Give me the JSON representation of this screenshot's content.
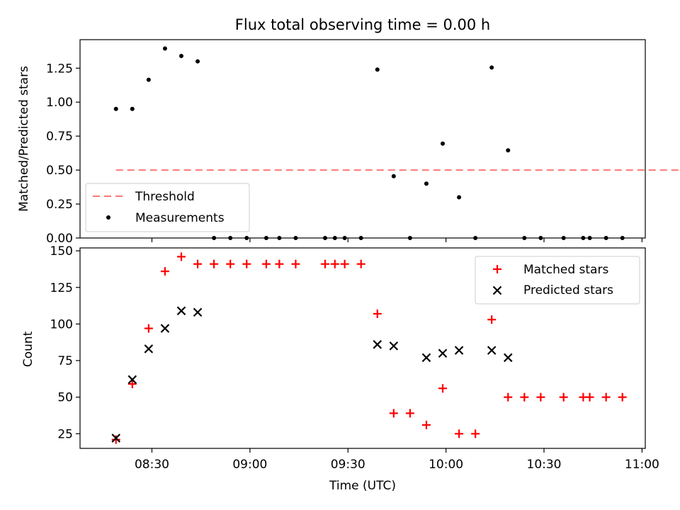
{
  "chart_data": [
    {
      "type": "scatter",
      "title": "Flux total observing time = 0.00 h",
      "xlabel": "",
      "ylabel": "Matched/Predicted stars",
      "ylim": [
        0,
        1.46
      ],
      "yticks": [
        "0.00",
        "0.25",
        "0.50",
        "0.75",
        "1.00",
        "1.25"
      ],
      "legend_position": "lower-left",
      "threshold": {
        "name": "Threshold",
        "value": 0.5,
        "x_range": [
          "08:19",
          "11:14"
        ],
        "color": "#ff7777"
      },
      "series": [
        {
          "name": "Measurements",
          "color": "#000000",
          "points": [
            {
              "x": "08:19",
              "y": 0.95
            },
            {
              "x": "08:24",
              "y": 0.95
            },
            {
              "x": "08:29",
              "y": 1.165
            },
            {
              "x": "08:34",
              "y": 1.395
            },
            {
              "x": "08:39",
              "y": 1.34
            },
            {
              "x": "08:44",
              "y": 1.3
            },
            {
              "x": "08:49",
              "y": 0.0
            },
            {
              "x": "08:54",
              "y": 0.0
            },
            {
              "x": "08:59",
              "y": 0.0
            },
            {
              "x": "09:05",
              "y": 0.0
            },
            {
              "x": "09:09",
              "y": 0.0
            },
            {
              "x": "09:14",
              "y": 0.0
            },
            {
              "x": "09:23",
              "y": 0.0
            },
            {
              "x": "09:26",
              "y": 0.0
            },
            {
              "x": "09:29",
              "y": 0.0
            },
            {
              "x": "09:34",
              "y": 0.0
            },
            {
              "x": "09:39",
              "y": 1.24
            },
            {
              "x": "09:44",
              "y": 0.455
            },
            {
              "x": "09:49",
              "y": 0.0
            },
            {
              "x": "09:54",
              "y": 0.4
            },
            {
              "x": "09:59",
              "y": 0.695
            },
            {
              "x": "10:04",
              "y": 0.3
            },
            {
              "x": "10:09",
              "y": 0.0
            },
            {
              "x": "10:14",
              "y": 1.255
            },
            {
              "x": "10:19",
              "y": 0.645
            },
            {
              "x": "10:24",
              "y": 0.0
            },
            {
              "x": "10:29",
              "y": 0.0
            },
            {
              "x": "10:36",
              "y": 0.0
            },
            {
              "x": "10:42",
              "y": 0.0
            },
            {
              "x": "10:44",
              "y": 0.0
            },
            {
              "x": "10:49",
              "y": 0.0
            },
            {
              "x": "10:54",
              "y": 0.0
            }
          ]
        }
      ]
    },
    {
      "type": "scatter",
      "title": "",
      "xlabel": "Time (UTC)",
      "ylabel": "Count",
      "ylim": [
        15,
        152
      ],
      "yticks": [
        "25",
        "50",
        "75",
        "100",
        "125",
        "150"
      ],
      "xlim": [
        "08:08",
        "11:01"
      ],
      "xticks": [
        "08:30",
        "09:00",
        "09:30",
        "10:00",
        "10:30",
        "11:00"
      ],
      "legend_position": "top-right",
      "series": [
        {
          "name": "Matched stars",
          "color": "#ff0000",
          "marker": "plus",
          "points": [
            {
              "x": "08:19",
              "y": 21
            },
            {
              "x": "08:24",
              "y": 59
            },
            {
              "x": "08:29",
              "y": 97
            },
            {
              "x": "08:34",
              "y": 136
            },
            {
              "x": "08:39",
              "y": 146
            },
            {
              "x": "08:44",
              "y": 141
            },
            {
              "x": "08:49",
              "y": 141
            },
            {
              "x": "08:54",
              "y": 141
            },
            {
              "x": "08:59",
              "y": 141
            },
            {
              "x": "09:05",
              "y": 141
            },
            {
              "x": "09:09",
              "y": 141
            },
            {
              "x": "09:14",
              "y": 141
            },
            {
              "x": "09:23",
              "y": 141
            },
            {
              "x": "09:26",
              "y": 141
            },
            {
              "x": "09:29",
              "y": 141
            },
            {
              "x": "09:34",
              "y": 141
            },
            {
              "x": "09:39",
              "y": 107
            },
            {
              "x": "09:44",
              "y": 39
            },
            {
              "x": "09:49",
              "y": 39
            },
            {
              "x": "09:54",
              "y": 31
            },
            {
              "x": "09:59",
              "y": 56
            },
            {
              "x": "10:04",
              "y": 25
            },
            {
              "x": "10:09",
              "y": 25
            },
            {
              "x": "10:14",
              "y": 103
            },
            {
              "x": "10:19",
              "y": 50
            },
            {
              "x": "10:24",
              "y": 50
            },
            {
              "x": "10:29",
              "y": 50
            },
            {
              "x": "10:36",
              "y": 50
            },
            {
              "x": "10:42",
              "y": 50
            },
            {
              "x": "10:44",
              "y": 50
            },
            {
              "x": "10:49",
              "y": 50
            },
            {
              "x": "10:54",
              "y": 50
            }
          ]
        },
        {
          "name": "Predicted stars",
          "color": "#000000",
          "marker": "x",
          "points": [
            {
              "x": "08:19",
              "y": 22
            },
            {
              "x": "08:24",
              "y": 62
            },
            {
              "x": "08:29",
              "y": 83
            },
            {
              "x": "08:34",
              "y": 97
            },
            {
              "x": "08:39",
              "y": 109
            },
            {
              "x": "08:44",
              "y": 108
            },
            {
              "x": "09:39",
              "y": 86
            },
            {
              "x": "09:44",
              "y": 85
            },
            {
              "x": "09:54",
              "y": 77
            },
            {
              "x": "09:59",
              "y": 80
            },
            {
              "x": "10:04",
              "y": 82
            },
            {
              "x": "10:14",
              "y": 82
            },
            {
              "x": "10:19",
              "y": 77
            }
          ]
        }
      ]
    }
  ]
}
